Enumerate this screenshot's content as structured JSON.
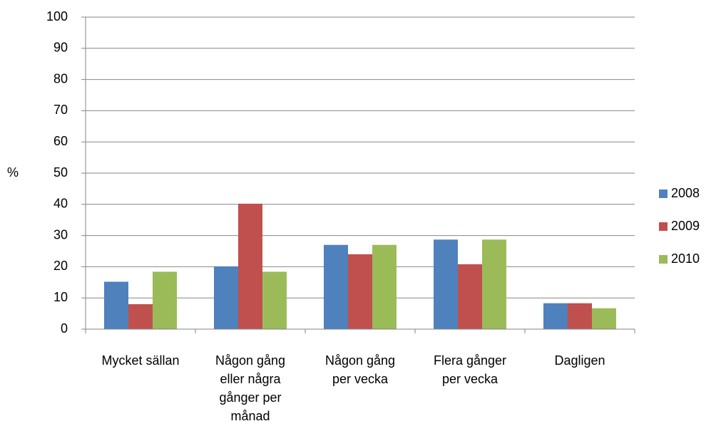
{
  "chart_data": {
    "type": "bar",
    "categories": [
      "Mycket sällan",
      "Någon gång eller några gånger per månad",
      "Någon gång per vecka",
      "Flera gånger per vecka",
      "Dagligen"
    ],
    "series": [
      {
        "name": "2008",
        "color": "#4f81bd",
        "values": [
          15.2,
          20.1,
          27,
          28.7,
          8.3
        ]
      },
      {
        "name": "2009",
        "color": "#c0504d",
        "values": [
          8,
          40.2,
          24,
          20.8,
          8.3
        ]
      },
      {
        "name": "2010",
        "color": "#9bbb59",
        "values": [
          18.4,
          18.4,
          27,
          28.7,
          6.7
        ]
      }
    ],
    "y_label": "%",
    "ylim": [
      0,
      100
    ],
    "yticks": [
      0,
      10,
      20,
      30,
      40,
      50,
      60,
      70,
      80,
      90,
      100
    ],
    "grid": true,
    "legend": "right"
  }
}
